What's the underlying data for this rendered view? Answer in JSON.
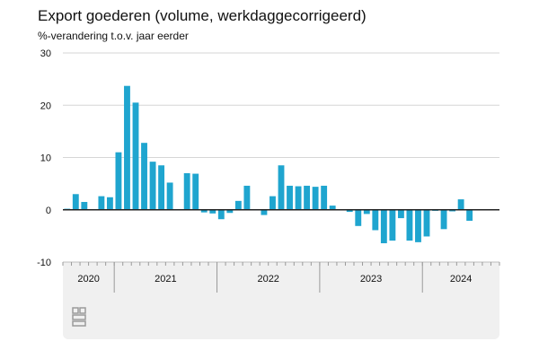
{
  "chart_data": {
    "type": "bar",
    "title": "Export goederen (volume, werkdaggecorrigeerd)",
    "ylabel": "%-verandering t.o.v. jaar eerder",
    "xlabel": "",
    "ylim": [
      -10,
      30
    ],
    "yticks": [
      "30",
      "20",
      "10",
      "0",
      "-10"
    ],
    "grid": true,
    "bar_color": "#1fa5cf",
    "year_labels": [
      "2020",
      "2021",
      "2022",
      "2023",
      "2024"
    ],
    "x": [
      "2020-07",
      "2020-08",
      "2020-09",
      "2020-10",
      "2020-11",
      "2020-12",
      "2021-01",
      "2021-02",
      "2021-03",
      "2021-04",
      "2021-05",
      "2021-06",
      "2021-07",
      "2021-08",
      "2021-09",
      "2021-10",
      "2021-11",
      "2021-12",
      "2022-01",
      "2022-02",
      "2022-03",
      "2022-04",
      "2022-05",
      "2022-06",
      "2022-07",
      "2022-08",
      "2022-09",
      "2022-10",
      "2022-11",
      "2022-12",
      "2023-01",
      "2023-02",
      "2023-03",
      "2023-04",
      "2023-05",
      "2023-06",
      "2023-07",
      "2023-08",
      "2023-09",
      "2023-10",
      "2023-11",
      "2023-12",
      "2024-01",
      "2024-02",
      "2024-03",
      "2024-04",
      "2024-05",
      "2024-06",
      "2024-07",
      "2024-08",
      "2024-09"
    ],
    "values": [
      0.2,
      3.0,
      1.5,
      0,
      2.6,
      2.4,
      11.0,
      23.7,
      20.5,
      12.8,
      9.2,
      8.5,
      5.2,
      0,
      7.0,
      6.9,
      -0.5,
      -0.7,
      -1.8,
      -0.6,
      1.7,
      4.6,
      0,
      -1.0,
      2.6,
      8.5,
      4.6,
      4.5,
      4.6,
      4.4,
      4.6,
      0.8,
      0,
      -0.4,
      -3.1,
      -0.8,
      -3.9,
      -6.4,
      -5.9,
      -1.6,
      -5.9,
      -6.2,
      -5.1,
      -0.2,
      -3.7,
      -0.3,
      2.0,
      -2.1,
      0,
      0,
      0
    ]
  },
  "colors": {
    "bar": "#1fa5cf",
    "grid": "#d6d6d6",
    "zero_line": "#222222",
    "footer_bg": "#f0f0f0"
  },
  "logo_icon": "cbs-logo-icon"
}
